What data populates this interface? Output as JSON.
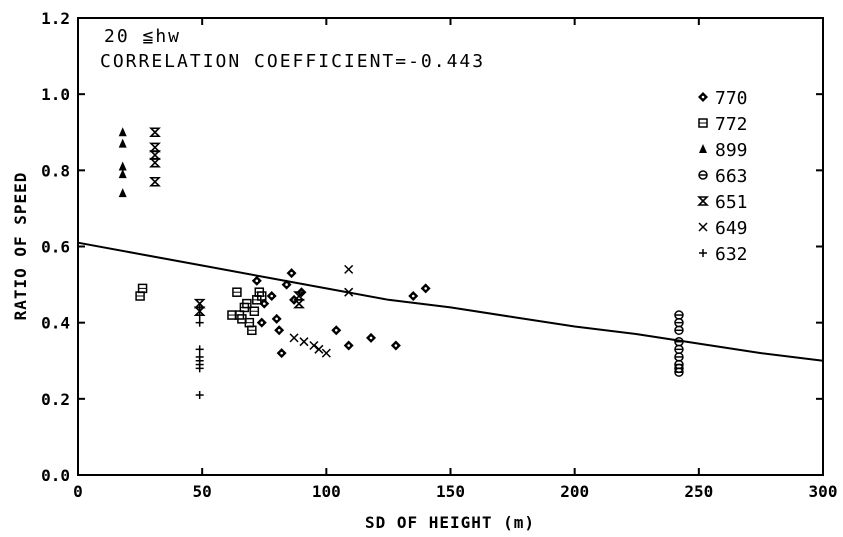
{
  "chart_data": {
    "type": "scatter",
    "title": "",
    "annotations": [
      "20 ≦hw",
      "CORRELATION COEFFICIENT=-0.443"
    ],
    "xlabel": "SD OF HEIGHT (m)",
    "ylabel": "RATIO OF SPEED",
    "xlim": [
      0,
      300
    ],
    "ylim": [
      0.0,
      1.2
    ],
    "xticks": [
      "0",
      "50",
      "100",
      "150",
      "200",
      "250",
      "300"
    ],
    "yticks": [
      "0.0",
      "0.2",
      "0.4",
      "0.6",
      "0.8",
      "1.0",
      "1.2"
    ],
    "grid": false,
    "legend_position": "right",
    "fit_curve": {
      "x": [
        0,
        25,
        50,
        75,
        100,
        125,
        150,
        175,
        200,
        225,
        250,
        275,
        300
      ],
      "y": [
        0.61,
        0.58,
        0.55,
        0.52,
        0.49,
        0.46,
        0.44,
        0.415,
        0.39,
        0.37,
        0.345,
        0.32,
        0.3
      ]
    },
    "series": [
      {
        "name": "770",
        "marker": "diamond",
        "x": [
          72,
          74,
          75,
          78,
          80,
          81,
          82,
          84,
          86,
          104,
          109,
          118,
          128,
          135,
          140,
          87,
          90
        ],
        "y": [
          0.51,
          0.4,
          0.45,
          0.47,
          0.41,
          0.38,
          0.32,
          0.5,
          0.53,
          0.38,
          0.34,
          0.36,
          0.34,
          0.47,
          0.49,
          0.46,
          0.48
        ]
      },
      {
        "name": "772",
        "marker": "square",
        "x": [
          25,
          26,
          62,
          64,
          66,
          68,
          69,
          70,
          71,
          72,
          73,
          74,
          67,
          65
        ],
        "y": [
          0.47,
          0.49,
          0.42,
          0.48,
          0.41,
          0.45,
          0.4,
          0.38,
          0.43,
          0.46,
          0.48,
          0.47,
          0.44,
          0.42
        ]
      },
      {
        "name": "899",
        "marker": "triangle",
        "x": [
          18,
          18,
          18,
          18,
          18
        ],
        "y": [
          0.9,
          0.87,
          0.81,
          0.79,
          0.74
        ]
      },
      {
        "name": "663",
        "marker": "circle-dot",
        "x": [
          242,
          242,
          242,
          242,
          242,
          242,
          242,
          242,
          242
        ],
        "y": [
          0.42,
          0.4,
          0.38,
          0.35,
          0.33,
          0.31,
          0.29,
          0.28,
          0.27
        ]
      },
      {
        "name": "651",
        "marker": "hourglass",
        "x": [
          31,
          31,
          31,
          31,
          31,
          49,
          49,
          89,
          89
        ],
        "y": [
          0.9,
          0.86,
          0.84,
          0.82,
          0.77,
          0.45,
          0.43,
          0.47,
          0.45
        ]
      },
      {
        "name": "649",
        "marker": "x",
        "x": [
          87,
          91,
          95,
          97,
          100,
          109,
          109
        ],
        "y": [
          0.36,
          0.35,
          0.34,
          0.33,
          0.32,
          0.54,
          0.48
        ]
      },
      {
        "name": "632",
        "marker": "plus",
        "x": [
          49,
          49,
          49,
          49,
          49,
          49,
          49,
          49,
          49
        ],
        "y": [
          0.44,
          0.42,
          0.4,
          0.33,
          0.31,
          0.3,
          0.29,
          0.28,
          0.21
        ]
      }
    ]
  }
}
